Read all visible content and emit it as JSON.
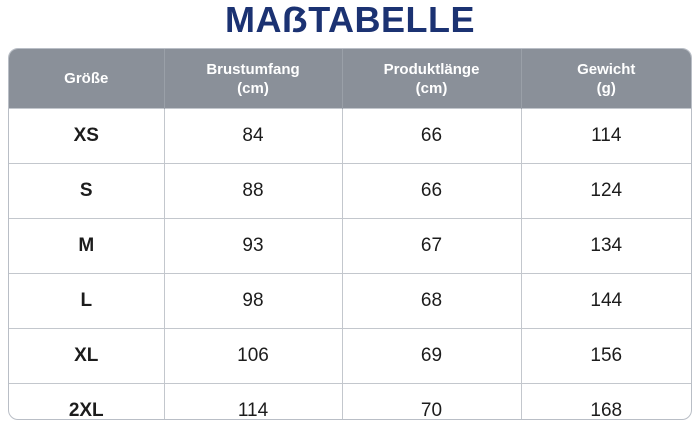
{
  "title": "MAẞTABELLE",
  "table": {
    "header": [
      [
        "Größe"
      ],
      [
        "Brustumfang",
        "(cm)"
      ],
      [
        "Produktlänge",
        "(cm)"
      ],
      [
        "Gewicht",
        "(g)"
      ]
    ],
    "rows": [
      [
        "XS",
        84,
        66,
        114
      ],
      [
        "S",
        88,
        66,
        124
      ],
      [
        "M",
        93,
        67,
        134
      ],
      [
        "L",
        98,
        68,
        144
      ],
      [
        "XL",
        106,
        69,
        156
      ],
      [
        "2XL",
        114,
        70,
        168
      ]
    ]
  }
}
